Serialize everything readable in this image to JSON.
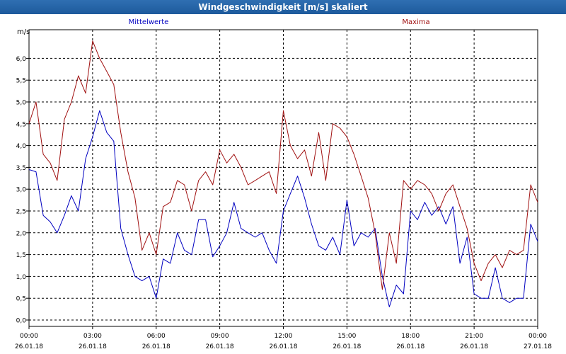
{
  "window": {
    "title": "Windgeschwindigkeit [m/s] skaliert"
  },
  "chart_data": {
    "type": "line",
    "unit_label": "m/s",
    "ylim": [
      0,
      6.75
    ],
    "y_ticks": [
      "0,0",
      "0,5",
      "1,0",
      "1,5",
      "2,0",
      "2,5",
      "3,0",
      "3,5",
      "4,0",
      "4,5",
      "5,0",
      "5,5",
      "6,0"
    ],
    "xlim": [
      0,
      24
    ],
    "x_ticks": [
      {
        "time": "00:00",
        "date": "26.01.18"
      },
      {
        "time": "03:00",
        "date": "26.01.18"
      },
      {
        "time": "06:00",
        "date": "26.01.18"
      },
      {
        "time": "09:00",
        "date": "26.01.18"
      },
      {
        "time": "12:00",
        "date": "26.01.18"
      },
      {
        "time": "15:00",
        "date": "26.01.18"
      },
      {
        "time": "18:00",
        "date": "26.01.18"
      },
      {
        "time": "21:00",
        "date": "26.01.18"
      },
      {
        "time": "00:00",
        "date": "27.01.18"
      }
    ],
    "grid": true,
    "series": [
      {
        "name": "Mittelwerte",
        "color": "#0000c0",
        "x": [
          0,
          0.33,
          0.67,
          1,
          1.33,
          1.67,
          2,
          2.33,
          2.67,
          3,
          3.33,
          3.67,
          4,
          4.33,
          4.67,
          5,
          5.33,
          5.67,
          6,
          6.33,
          6.67,
          7,
          7.33,
          7.67,
          8,
          8.33,
          8.67,
          9,
          9.33,
          9.67,
          10,
          10.33,
          10.67,
          11,
          11.33,
          11.67,
          12,
          12.33,
          12.67,
          13,
          13.33,
          13.67,
          14,
          14.33,
          14.67,
          15,
          15.33,
          15.67,
          16,
          16.33,
          16.67,
          17,
          17.33,
          17.67,
          18,
          18.33,
          18.67,
          19,
          19.33,
          19.67,
          20,
          20.33,
          20.67,
          21,
          21.33,
          21.67,
          22,
          22.33,
          22.67,
          23,
          23.33,
          23.67,
          24
        ],
        "y": [
          3.45,
          3.4,
          2.4,
          2.25,
          2.0,
          2.4,
          2.85,
          2.5,
          3.7,
          4.2,
          4.8,
          4.3,
          4.1,
          2.1,
          1.5,
          1.0,
          0.9,
          1.0,
          0.5,
          1.4,
          1.3,
          2.0,
          1.6,
          1.5,
          2.3,
          2.3,
          1.45,
          1.7,
          2.0,
          2.7,
          2.1,
          2.0,
          1.9,
          2.0,
          1.6,
          1.3,
          2.5,
          2.9,
          3.3,
          2.8,
          2.2,
          1.7,
          1.6,
          1.9,
          1.5,
          2.75,
          1.7,
          2.0,
          1.9,
          2.1,
          1.0,
          0.3,
          0.8,
          0.6,
          2.5,
          2.3,
          2.7,
          2.4,
          2.6,
          2.2,
          2.6,
          1.3,
          1.9,
          0.6,
          0.5,
          0.5,
          1.2,
          0.5,
          0.4,
          0.5,
          0.5,
          2.2,
          1.8
        ]
      },
      {
        "name": "Maxima",
        "color": "#a01010",
        "x": [
          0,
          0.33,
          0.67,
          1,
          1.33,
          1.67,
          2,
          2.33,
          2.67,
          3,
          3.33,
          3.67,
          4,
          4.33,
          4.67,
          5,
          5.33,
          5.67,
          6,
          6.33,
          6.67,
          7,
          7.33,
          7.67,
          8,
          8.33,
          8.67,
          9,
          9.33,
          9.67,
          10,
          10.33,
          10.67,
          11,
          11.33,
          11.67,
          12,
          12.33,
          12.67,
          13,
          13.33,
          13.67,
          14,
          14.33,
          14.67,
          15,
          15.33,
          15.67,
          16,
          16.33,
          16.67,
          17,
          17.33,
          17.67,
          18,
          18.33,
          18.67,
          19,
          19.33,
          19.67,
          20,
          20.33,
          20.67,
          21,
          21.33,
          21.67,
          22,
          22.33,
          22.67,
          23,
          23.33,
          23.67,
          24
        ],
        "y": [
          4.5,
          5.0,
          3.8,
          3.6,
          3.2,
          4.6,
          5.0,
          5.6,
          5.2,
          6.4,
          6.0,
          5.7,
          5.4,
          4.3,
          3.4,
          2.8,
          1.6,
          2.0,
          1.5,
          2.6,
          2.7,
          3.2,
          3.1,
          2.5,
          3.2,
          3.4,
          3.1,
          3.9,
          3.6,
          3.8,
          3.5,
          3.1,
          3.2,
          3.3,
          3.4,
          2.9,
          4.8,
          4.0,
          3.7,
          3.9,
          3.3,
          4.3,
          3.2,
          4.5,
          4.4,
          4.2,
          3.8,
          3.3,
          2.8,
          2.0,
          0.7,
          2.0,
          1.3,
          3.2,
          3.0,
          3.2,
          3.1,
          2.9,
          2.5,
          2.9,
          3.1,
          2.6,
          2.1,
          1.3,
          0.9,
          1.3,
          1.5,
          1.2,
          1.6,
          1.5,
          1.6,
          3.1,
          2.7
        ]
      }
    ]
  }
}
